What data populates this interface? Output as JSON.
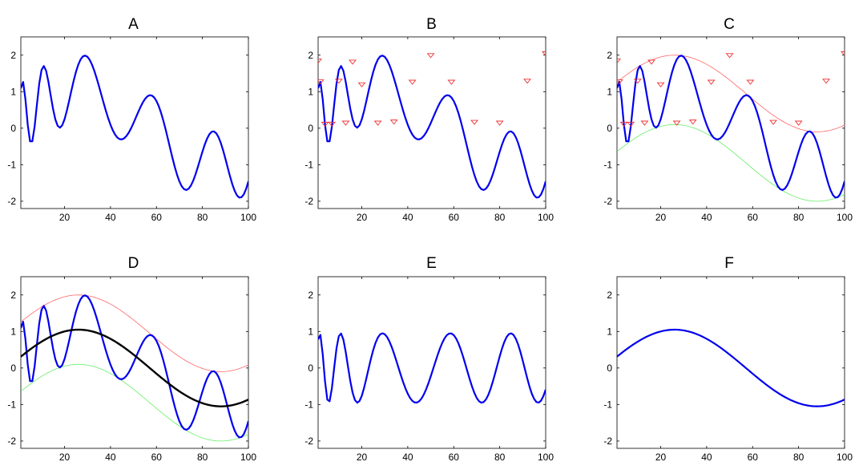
{
  "colors": {
    "signal": "#0000ee",
    "trend": "#000000",
    "upper_envelope": "#ff6666",
    "lower_envelope": "#66ee66",
    "markers": "#ee3333",
    "axes": "#000000",
    "background": "#ffffff"
  },
  "chart_data": [
    {
      "panel": "A",
      "type": "line",
      "title": "A",
      "xlabel": "",
      "ylabel": "",
      "xlim": [
        1,
        100
      ],
      "ylim": [
        -2.2,
        2.5
      ],
      "xticks": [
        20,
        40,
        60,
        80,
        100
      ],
      "yticks": [
        -2,
        -1,
        0,
        1,
        2
      ],
      "grid": false,
      "series": [
        {
          "role": "signal",
          "x_range": [
            1,
            100
          ],
          "formula": "1.05*sin(pi*t/62 + 0.25) + 0.95*sin(t*(0.3 + 0.7*exp(-t/22)))"
        }
      ]
    },
    {
      "panel": "B",
      "type": "line",
      "title": "B",
      "xlabel": "",
      "ylabel": "",
      "xlim": [
        1,
        100
      ],
      "ylim": [
        -2.2,
        2.5
      ],
      "xticks": [
        20,
        40,
        60,
        80,
        100
      ],
      "yticks": [
        -2,
        -1,
        0,
        1,
        2
      ],
      "grid": false,
      "series": [
        {
          "role": "signal",
          "x_range": [
            1,
            100
          ],
          "formula": "1.05*sin(pi*t/62 + 0.25) + 0.95*sin(t*(0.3 + 0.7*exp(-t/22)))"
        },
        {
          "role": "markers",
          "points": [
            [
              1,
              1.85
            ],
            [
              2,
              1.28
            ],
            [
              4,
              0.12
            ],
            [
              7,
              0.12
            ],
            [
              10,
              1.3
            ],
            [
              13,
              0.15
            ],
            [
              16,
              1.82
            ],
            [
              20,
              1.2
            ],
            [
              27,
              0.15
            ],
            [
              34,
              0.18
            ],
            [
              42,
              1.27
            ],
            [
              50,
              2.0
            ],
            [
              59,
              1.27
            ],
            [
              69,
              0.17
            ],
            [
              80,
              0.15
            ],
            [
              92,
              1.3
            ],
            [
              100,
              2.05
            ]
          ]
        }
      ]
    },
    {
      "panel": "C",
      "type": "line",
      "title": "C",
      "xlabel": "",
      "ylabel": "",
      "xlim": [
        1,
        100
      ],
      "ylim": [
        -2.2,
        2.5
      ],
      "xticks": [
        20,
        40,
        60,
        80,
        100
      ],
      "yticks": [
        -2,
        -1,
        0,
        1,
        2
      ],
      "grid": false,
      "series": [
        {
          "role": "signal",
          "x_range": [
            1,
            100
          ],
          "formula": "1.05*sin(pi*t/62 + 0.25) + 0.95*sin(t*(0.3 + 0.7*exp(-t/22)))"
        },
        {
          "role": "upper_envelope",
          "x_range": [
            1,
            100
          ],
          "formula": "1.05*sin(pi*t/62 + 0.25) + 0.95"
        },
        {
          "role": "lower_envelope",
          "x_range": [
            1,
            100
          ],
          "formula": "1.05*sin(pi*t/62 + 0.25) - 0.95"
        },
        {
          "role": "markers",
          "points": [
            [
              1,
              1.85
            ],
            [
              2,
              1.28
            ],
            [
              4,
              0.12
            ],
            [
              7,
              0.12
            ],
            [
              10,
              1.3
            ],
            [
              13,
              0.15
            ],
            [
              16,
              1.82
            ],
            [
              20,
              1.2
            ],
            [
              27,
              0.15
            ],
            [
              34,
              0.18
            ],
            [
              42,
              1.27
            ],
            [
              50,
              2.0
            ],
            [
              59,
              1.27
            ],
            [
              69,
              0.17
            ],
            [
              80,
              0.15
            ],
            [
              92,
              1.3
            ],
            [
              100,
              2.05
            ]
          ]
        }
      ]
    },
    {
      "panel": "D",
      "type": "line",
      "title": "D",
      "xlabel": "",
      "ylabel": "",
      "xlim": [
        1,
        100
      ],
      "ylim": [
        -2.2,
        2.5
      ],
      "xticks": [
        20,
        40,
        60,
        80,
        100
      ],
      "yticks": [
        -2,
        -1,
        0,
        1,
        2
      ],
      "grid": false,
      "series": [
        {
          "role": "signal",
          "x_range": [
            1,
            100
          ],
          "formula": "1.05*sin(pi*t/62 + 0.25) + 0.95*sin(t*(0.3 + 0.7*exp(-t/22)))"
        },
        {
          "role": "upper_envelope",
          "x_range": [
            1,
            100
          ],
          "formula": "1.05*sin(pi*t/62 + 0.25) + 0.95"
        },
        {
          "role": "lower_envelope",
          "x_range": [
            1,
            100
          ],
          "formula": "1.05*sin(pi*t/62 + 0.25) - 0.95"
        },
        {
          "role": "trend",
          "x_range": [
            1,
            100
          ],
          "formula": "1.05*sin(pi*t/62 + 0.25)"
        }
      ]
    },
    {
      "panel": "E",
      "type": "line",
      "title": "E",
      "xlabel": "",
      "ylabel": "",
      "xlim": [
        1,
        100
      ],
      "ylim": [
        -2.2,
        2.5
      ],
      "xticks": [
        20,
        40,
        60,
        80,
        100
      ],
      "yticks": [
        -2,
        -1,
        0,
        1,
        2
      ],
      "grid": false,
      "series": [
        {
          "role": "signal",
          "x_range": [
            1,
            100
          ],
          "formula": "0.95*sin(t*(0.3 + 0.7*exp(-t/22)))"
        }
      ]
    },
    {
      "panel": "F",
      "type": "line",
      "title": "F",
      "xlabel": "",
      "ylabel": "",
      "xlim": [
        1,
        100
      ],
      "ylim": [
        -2.2,
        2.5
      ],
      "xticks": [
        20,
        40,
        60,
        80,
        100
      ],
      "yticks": [
        -2,
        -1,
        0,
        1,
        2
      ],
      "grid": false,
      "series": [
        {
          "role": "signal",
          "x_range": [
            1,
            100
          ],
          "formula": "1.05*sin(pi*t/62 + 0.25)"
        }
      ]
    }
  ]
}
